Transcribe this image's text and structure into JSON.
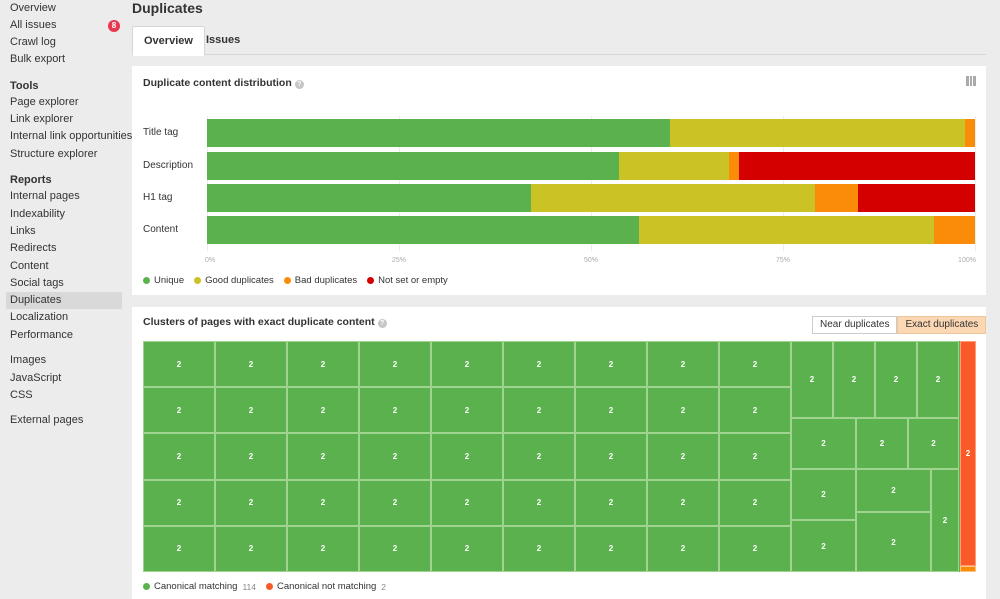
{
  "sidebar": {
    "top_items": [
      {
        "label": "Overview",
        "badge": null
      },
      {
        "label": "All issues",
        "badge": "8"
      },
      {
        "label": "Crawl log",
        "badge": null
      },
      {
        "label": "Bulk export",
        "badge": null
      }
    ],
    "tools_heading": "Tools",
    "tools_items": [
      "Page explorer",
      "Link explorer",
      "Internal link opportunities",
      "Structure explorer"
    ],
    "reports_heading": "Reports",
    "reports_items": [
      "Internal pages",
      "Indexability",
      "Links",
      "Redirects",
      "Content",
      "Social tags",
      "Duplicates",
      "Localization",
      "Performance"
    ],
    "active_item": "Duplicates",
    "asset_items": [
      "Images",
      "JavaScript",
      "CSS"
    ],
    "external_items": [
      "External pages"
    ]
  },
  "page": {
    "title": "Duplicates",
    "tabs": [
      {
        "label": "Overview",
        "active": true
      },
      {
        "label": "Issues",
        "active": false
      }
    ]
  },
  "distribution": {
    "title": "Duplicate content distribution",
    "help": "?",
    "chart_data": {
      "type": "bar",
      "orientation": "horizontal-stacked-100",
      "categories": [
        "Title tag",
        "Description",
        "H1 tag",
        "Content"
      ],
      "series": [
        {
          "name": "Unique",
          "color": "#5cb14f",
          "values": [
            60.3,
            53.7,
            42.2,
            56.3
          ]
        },
        {
          "name": "Good duplicates",
          "color": "#cbc325",
          "values": [
            38.4,
            14.3,
            37.0,
            38.4
          ]
        },
        {
          "name": "Bad duplicates",
          "color": "#fa8c0a",
          "values": [
            1.3,
            1.3,
            5.6,
            5.3
          ]
        },
        {
          "name": "Not set or empty",
          "color": "#d40000",
          "values": [
            0,
            30.7,
            15.2,
            0
          ]
        }
      ],
      "ticks": [
        "0%",
        "25%",
        "50%",
        "75%",
        "100%"
      ],
      "xlim": [
        0,
        100
      ],
      "grid": true,
      "legend_position": "bottom-left"
    }
  },
  "clusters": {
    "title": "Clusters of pages with exact duplicate content",
    "help": "?",
    "toggle": [
      {
        "label": "Near duplicates",
        "active": false
      },
      {
        "label": "Exact duplicates",
        "active": true
      }
    ],
    "cell_value": "2",
    "legend": [
      {
        "label": "Canonical matching",
        "count": "114",
        "color": "#5cb14f"
      },
      {
        "label": "Canonical not matching",
        "count": "2",
        "color": "#fa5a28"
      }
    ]
  }
}
